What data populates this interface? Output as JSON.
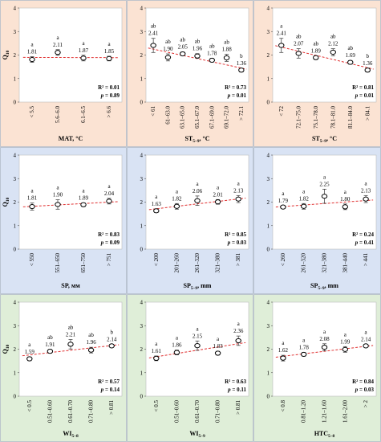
{
  "chart_data": [
    {
      "type": "scatter",
      "bg": "#fbe3d3",
      "ylabel": "Q10",
      "xlabel": "MAT, °C",
      "ylim": [
        0,
        4
      ],
      "categories": [
        "< 5.5",
        "5.6–6.0",
        "6.1–6.5",
        "> 6.6"
      ],
      "values": [
        1.81,
        2.11,
        1.87,
        1.85
      ],
      "errors": [
        0.12,
        0.12,
        0.12,
        0.1
      ],
      "letters": [
        "a",
        "a",
        "a",
        "a"
      ],
      "labels": [
        "1.81",
        "2.11",
        "1.87",
        "1.85"
      ],
      "r2": "R² = 0.01",
      "p": "p = 0.89",
      "trend": [
        1.9,
        1.89
      ]
    },
    {
      "type": "scatter",
      "bg": "#fbe3d3",
      "ylabel": "",
      "xlabel": "ST5–9, °C",
      "ylim": [
        0,
        4
      ],
      "categories": [
        "< 61",
        "61–63.0",
        "63.1–65.0",
        "65.1–67.0",
        "67.1–69.0",
        "69.1–72.0",
        "> 72.1"
      ],
      "values": [
        2.41,
        1.9,
        2.05,
        1.96,
        1.78,
        1.88,
        1.36
      ],
      "errors": [
        0.3,
        0.15,
        0.08,
        0.1,
        0.08,
        0.15,
        0.08
      ],
      "letters": [
        "ab",
        "ab",
        "ab",
        "ab",
        "ab",
        "ab",
        "b"
      ],
      "labels": [
        "2.41",
        "1.90",
        "2.05",
        "1.96",
        "1.78",
        "1.88",
        "1.36"
      ],
      "r2": "R² = 0.73",
      "p": "p = 0.01",
      "trend": [
        2.3,
        1.4
      ]
    },
    {
      "type": "scatter",
      "bg": "#fbe3d3",
      "ylabel": "",
      "xlabel": "ST5–9, °C",
      "ylim": [
        0,
        4
      ],
      "categories": [
        "< 72",
        "72.1–75.0",
        "75.1–78.0",
        "78.1–81.0",
        "81.1–84.0",
        "> 84.1"
      ],
      "values": [
        2.41,
        2.07,
        1.89,
        2.12,
        1.69,
        1.36
      ],
      "errors": [
        0.3,
        0.2,
        0.08,
        0.15,
        0.08,
        0.08
      ],
      "letters": [
        "a",
        "ab",
        "ab",
        "ab",
        "ab",
        "b"
      ],
      "labels": [
        "2.41",
        "2.07",
        "1.89",
        "2.12",
        "1.69",
        "1.36"
      ],
      "r2": "R² = 0.81",
      "p": "p = 0.01",
      "trend": [
        2.4,
        1.4
      ]
    },
    {
      "type": "scatter",
      "bg": "#d9e3f4",
      "ylabel": "Q10",
      "xlabel": "SP, мм",
      "ylim": [
        0,
        4
      ],
      "categories": [
        "< 550",
        "551–650",
        "651–750",
        "> 751"
      ],
      "values": [
        1.81,
        1.9,
        1.89,
        2.04
      ],
      "errors": [
        0.15,
        0.2,
        0.08,
        0.12
      ],
      "letters": [
        "a",
        "a",
        "a",
        "a"
      ],
      "labels": [
        "1.81",
        "1.90",
        "1.89",
        "2.04"
      ],
      "r2": "R² = 0.83",
      "p": "p = 0.09",
      "trend": [
        1.8,
        2.02
      ]
    },
    {
      "type": "scatter",
      "bg": "#d9e3f4",
      "ylabel": "",
      "xlabel": "SP5–9, mm",
      "ylim": [
        0,
        4
      ],
      "categories": [
        "< 200",
        "201–260",
        "261–320",
        "321–380",
        "> 381"
      ],
      "values": [
        1.63,
        1.82,
        2.06,
        2.01,
        2.13
      ],
      "errors": [
        0.08,
        0.12,
        0.2,
        0.1,
        0.15
      ],
      "letters": [
        "a",
        "a",
        "a",
        "a",
        "a"
      ],
      "labels": [
        "1.63",
        "1.82",
        "2.06",
        "2.01",
        "2.13"
      ],
      "r2": "R² = 0.85",
      "p": "p = 0.03",
      "trend": [
        1.68,
        2.17
      ]
    },
    {
      "type": "scatter",
      "bg": "#d9e3f4",
      "ylabel": "",
      "xlabel": "SP5–9, mm",
      "ylim": [
        0,
        4
      ],
      "categories": [
        "< 260",
        "261–320",
        "321–380",
        "381–440",
        "> 441"
      ],
      "values": [
        1.79,
        1.82,
        2.25,
        1.8,
        2.13
      ],
      "errors": [
        0.06,
        0.12,
        0.3,
        0.12,
        0.15
      ],
      "letters": [
        "a",
        "a",
        "a",
        "a",
        "a"
      ],
      "labels": [
        "1.79",
        "1.82",
        "2.25",
        "1.80",
        "2.13"
      ],
      "r2": "R² = 0.24",
      "p": "p = 0.41",
      "trend": [
        1.79,
        2.09
      ]
    },
    {
      "type": "scatter",
      "bg": "#dfeed8",
      "ylabel": "Q10",
      "xlabel": "WI5–8",
      "ylim": [
        0,
        4
      ],
      "categories": [
        "< 0.5",
        "0.51–0.60",
        "0.61–0.70",
        "0.71–0.80",
        "> 0.81"
      ],
      "values": [
        1.59,
        1.91,
        2.21,
        1.96,
        2.14
      ],
      "errors": [
        0.08,
        0.08,
        0.2,
        0.12,
        0.06
      ],
      "letters": [
        "a",
        "ab",
        "ab",
        "ab",
        "b"
      ],
      "labels": [
        "1.59",
        "1.91",
        "2.21",
        "1.96",
        "2.14"
      ],
      "r2": "R² = 0.57",
      "p": "p = 0.14",
      "trend": [
        1.72,
        2.19
      ]
    },
    {
      "type": "scatter",
      "bg": "#dfeed8",
      "ylabel": "",
      "xlabel": "WI5–9",
      "ylim": [
        0,
        4
      ],
      "categories": [
        "< 0.5",
        "0.51–0.60",
        "0.61–0.70",
        "0.71–0.80",
        "> 0.81"
      ],
      "values": [
        1.61,
        1.86,
        2.15,
        1.83,
        2.36
      ],
      "errors": [
        0.1,
        0.1,
        0.2,
        0.08,
        0.2
      ],
      "letters": [
        "a",
        "a",
        "a",
        "a",
        "a"
      ],
      "labels": [
        "1.61",
        "1.86",
        "2.15",
        "1.83",
        "2.36"
      ],
      "r2": "R² = 0.63",
      "p": "p = 0.11",
      "trend": [
        1.63,
        2.28
      ]
    },
    {
      "type": "scatter",
      "bg": "#dfeed8",
      "ylabel": "",
      "xlabel": "HTC5–8",
      "ylim": [
        0,
        4
      ],
      "categories": [
        "< 0.8",
        "0.81–1.20",
        "1.21–1.60",
        "1.61–2.00",
        "> 2"
      ],
      "values": [
        1.62,
        1.78,
        2.08,
        1.99,
        2.14
      ],
      "errors": [
        0.12,
        0.08,
        0.15,
        0.12,
        0.06
      ],
      "letters": [
        "a",
        "a",
        "a",
        "a",
        "a"
      ],
      "labels": [
        "1.62",
        "1.78",
        "2.08",
        "1.99",
        "2.14"
      ],
      "r2": "R² = 0.84",
      "p": "p = 0.03",
      "trend": [
        1.66,
        2.16
      ]
    }
  ]
}
